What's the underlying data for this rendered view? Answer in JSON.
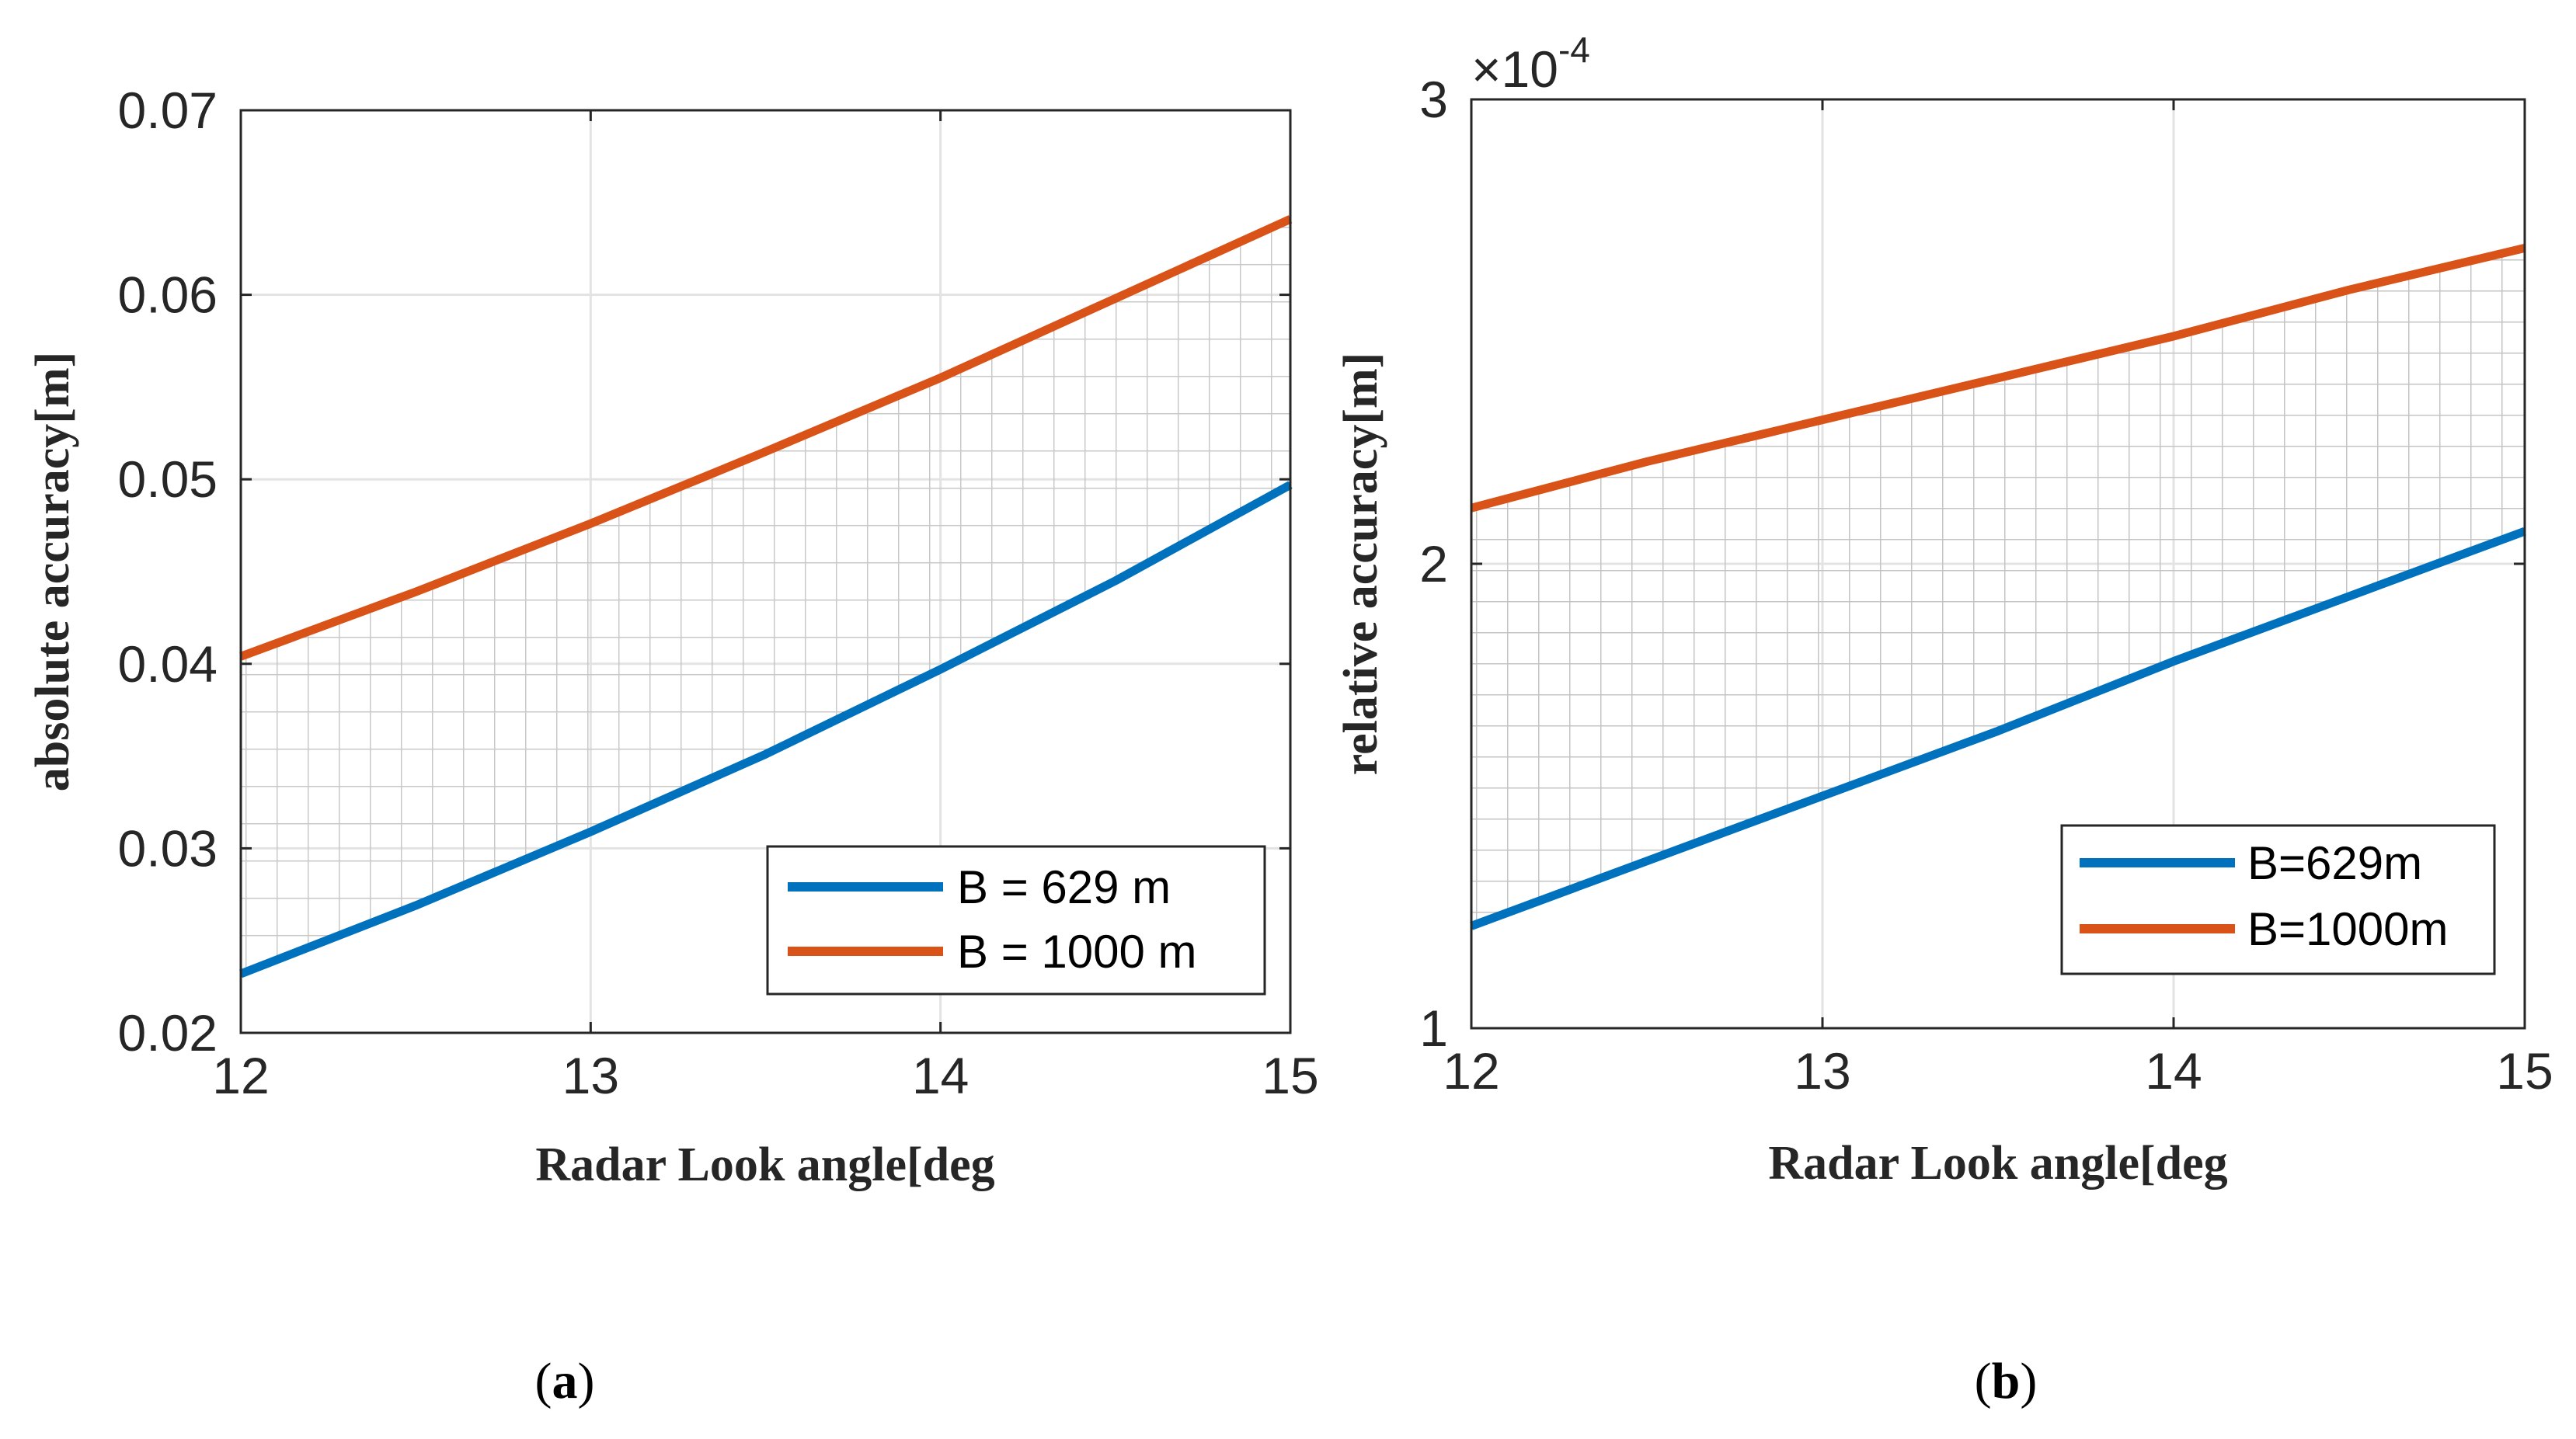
{
  "chart_data": [
    {
      "type": "line",
      "panel": "a",
      "caption": "(a)",
      "caption_letter": "a",
      "xlabel": "Radar Look angle[deg",
      "ylabel": "absolute accuracy[m]",
      "xlim": [
        12,
        15
      ],
      "ylim": [
        0.02,
        0.07
      ],
      "xticks": [
        "12",
        "13",
        "14",
        "15"
      ],
      "yticks": [
        "0.02",
        "0.03",
        "0.04",
        "0.05",
        "0.06",
        "0.07"
      ],
      "grid": true,
      "shaded_region": "between series (grid-hatched)",
      "legend_position": "lower-right",
      "series": [
        {
          "name": "B = 629 m",
          "color": "#0072BD",
          "x": [
            12,
            12.5,
            13,
            13.5,
            14,
            14.5,
            15
          ],
          "y": [
            0.0232,
            0.0269,
            0.0309,
            0.0351,
            0.0397,
            0.0445,
            0.0497
          ]
        },
        {
          "name": "B = 1000 m",
          "color": "#D95319",
          "x": [
            12,
            12.5,
            13,
            13.5,
            14,
            14.5,
            15
          ],
          "y": [
            0.0404,
            0.0439,
            0.0476,
            0.0515,
            0.0555,
            0.0598,
            0.0641
          ]
        }
      ]
    },
    {
      "type": "line",
      "panel": "b",
      "caption": "(b)",
      "caption_letter": "b",
      "xlabel": "Radar Look angle[deg",
      "ylabel": "relative accuracy[m]",
      "scale_prefix": "×10",
      "scale_exponent": "-4",
      "xlim": [
        12,
        15
      ],
      "ylim": [
        1,
        3
      ],
      "xticks": [
        "12",
        "13",
        "14",
        "15"
      ],
      "yticks": [
        "1",
        "2",
        "3"
      ],
      "grid": true,
      "shaded_region": "between series (grid-hatched)",
      "legend_position": "lower-right",
      "series": [
        {
          "name": "B=629m",
          "color": "#0072BD",
          "x": [
            12,
            12.5,
            13,
            13.5,
            14,
            14.5,
            15
          ],
          "y": [
            1.22,
            1.36,
            1.5,
            1.64,
            1.79,
            1.93,
            2.07
          ]
        },
        {
          "name": "B=1000m",
          "color": "#D95319",
          "x": [
            12,
            12.5,
            13,
            13.5,
            14,
            14.5,
            15
          ],
          "y": [
            2.12,
            2.22,
            2.31,
            2.4,
            2.49,
            2.59,
            2.68
          ]
        }
      ]
    }
  ]
}
